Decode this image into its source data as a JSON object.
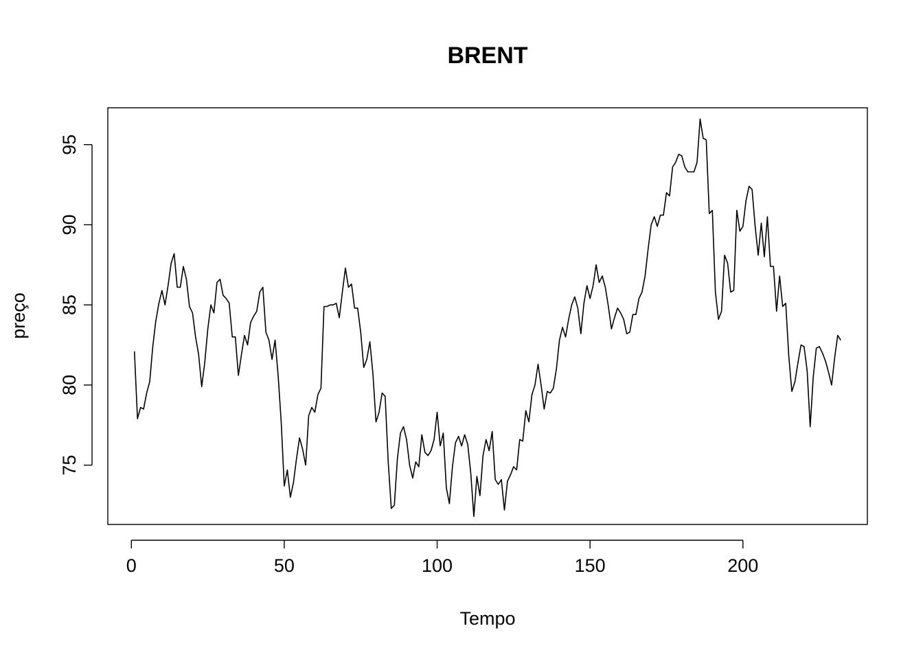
{
  "chart_data": {
    "type": "line",
    "title": "BRENT",
    "xlabel": "Tempo",
    "ylabel": "preço",
    "xlim": [
      -7.7,
      240.7
    ],
    "ylim": [
      71.3,
      97.3
    ],
    "xticks": [
      0,
      50,
      100,
      150,
      200
    ],
    "yticks": [
      75,
      80,
      85,
      90,
      95
    ],
    "grid": false,
    "legend": "none",
    "series": [
      {
        "values": [
          82.1,
          77.9,
          78.6,
          78.5,
          79.5,
          80.2,
          82.4,
          84.0,
          85.1,
          85.9,
          85.0,
          86.2,
          87.6,
          88.2,
          86.1,
          86.1,
          87.4,
          86.6,
          84.9,
          84.5,
          83.0,
          81.9,
          79.9,
          81.4,
          83.5,
          85.0,
          84.5,
          86.4,
          86.6,
          85.6,
          85.4,
          85.1,
          83.0,
          83.0,
          80.6,
          81.9,
          83.1,
          82.5,
          83.9,
          84.3,
          84.6,
          85.8,
          86.1,
          83.3,
          82.8,
          81.6,
          82.8,
          80.6,
          77.7,
          73.7,
          74.7,
          73.0,
          73.9,
          75.4,
          76.7,
          76.0,
          75.0,
          78.1,
          78.6,
          78.3,
          79.4,
          79.8,
          84.9,
          84.9,
          85.0,
          85.0,
          85.1,
          84.2,
          85.8,
          87.3,
          86.1,
          86.3,
          84.8,
          84.8,
          83.3,
          81.1,
          81.6,
          82.7,
          80.7,
          77.7,
          78.3,
          79.5,
          79.3,
          75.2,
          72.3,
          72.5,
          75.4,
          77.0,
          77.4,
          76.6,
          75.0,
          74.2,
          75.2,
          74.9,
          76.9,
          75.8,
          75.6,
          75.9,
          76.6,
          78.3,
          76.2,
          77.0,
          73.6,
          72.6,
          74.9,
          76.4,
          76.8,
          76.2,
          76.9,
          76.3,
          74.5,
          71.8,
          74.3,
          73.1,
          75.6,
          76.6,
          75.9,
          77.1,
          74.1,
          73.8,
          74.1,
          72.2,
          74.0,
          74.4,
          74.9,
          74.7,
          76.6,
          76.5,
          78.4,
          77.7,
          79.4,
          80.0,
          81.3,
          80.0,
          78.5,
          79.6,
          79.5,
          79.8,
          81.0,
          82.8,
          83.6,
          83.0,
          84.1,
          85.0,
          85.5,
          84.8,
          83.2,
          85.1,
          86.2,
          85.4,
          86.2,
          87.5,
          86.4,
          86.8,
          86.1,
          84.9,
          83.5,
          84.2,
          84.8,
          84.5,
          84.1,
          83.2,
          83.3,
          84.4,
          84.4,
          85.4,
          85.8,
          86.8,
          88.5,
          90.0,
          90.5,
          89.9,
          90.6,
          90.6,
          92.0,
          91.8,
          93.6,
          93.9,
          94.4,
          94.3,
          93.6,
          93.3,
          93.3,
          93.3,
          93.9,
          96.6,
          95.4,
          95.3,
          90.7,
          90.9,
          85.8,
          84.1,
          84.6,
          88.1,
          87.6,
          85.8,
          85.9,
          90.9,
          89.6,
          89.9,
          91.5,
          92.4,
          92.2,
          89.9,
          88.1,
          90.1,
          88.0,
          90.5,
          87.4,
          87.4,
          84.6,
          86.8,
          84.9,
          85.1,
          81.8,
          79.6,
          80.2,
          81.4,
          82.5,
          82.4,
          80.9,
          77.4,
          80.5,
          82.3,
          82.4,
          82.0,
          81.5,
          80.8,
          80.0,
          81.7,
          83.1,
          82.8
        ]
      }
    ]
  }
}
